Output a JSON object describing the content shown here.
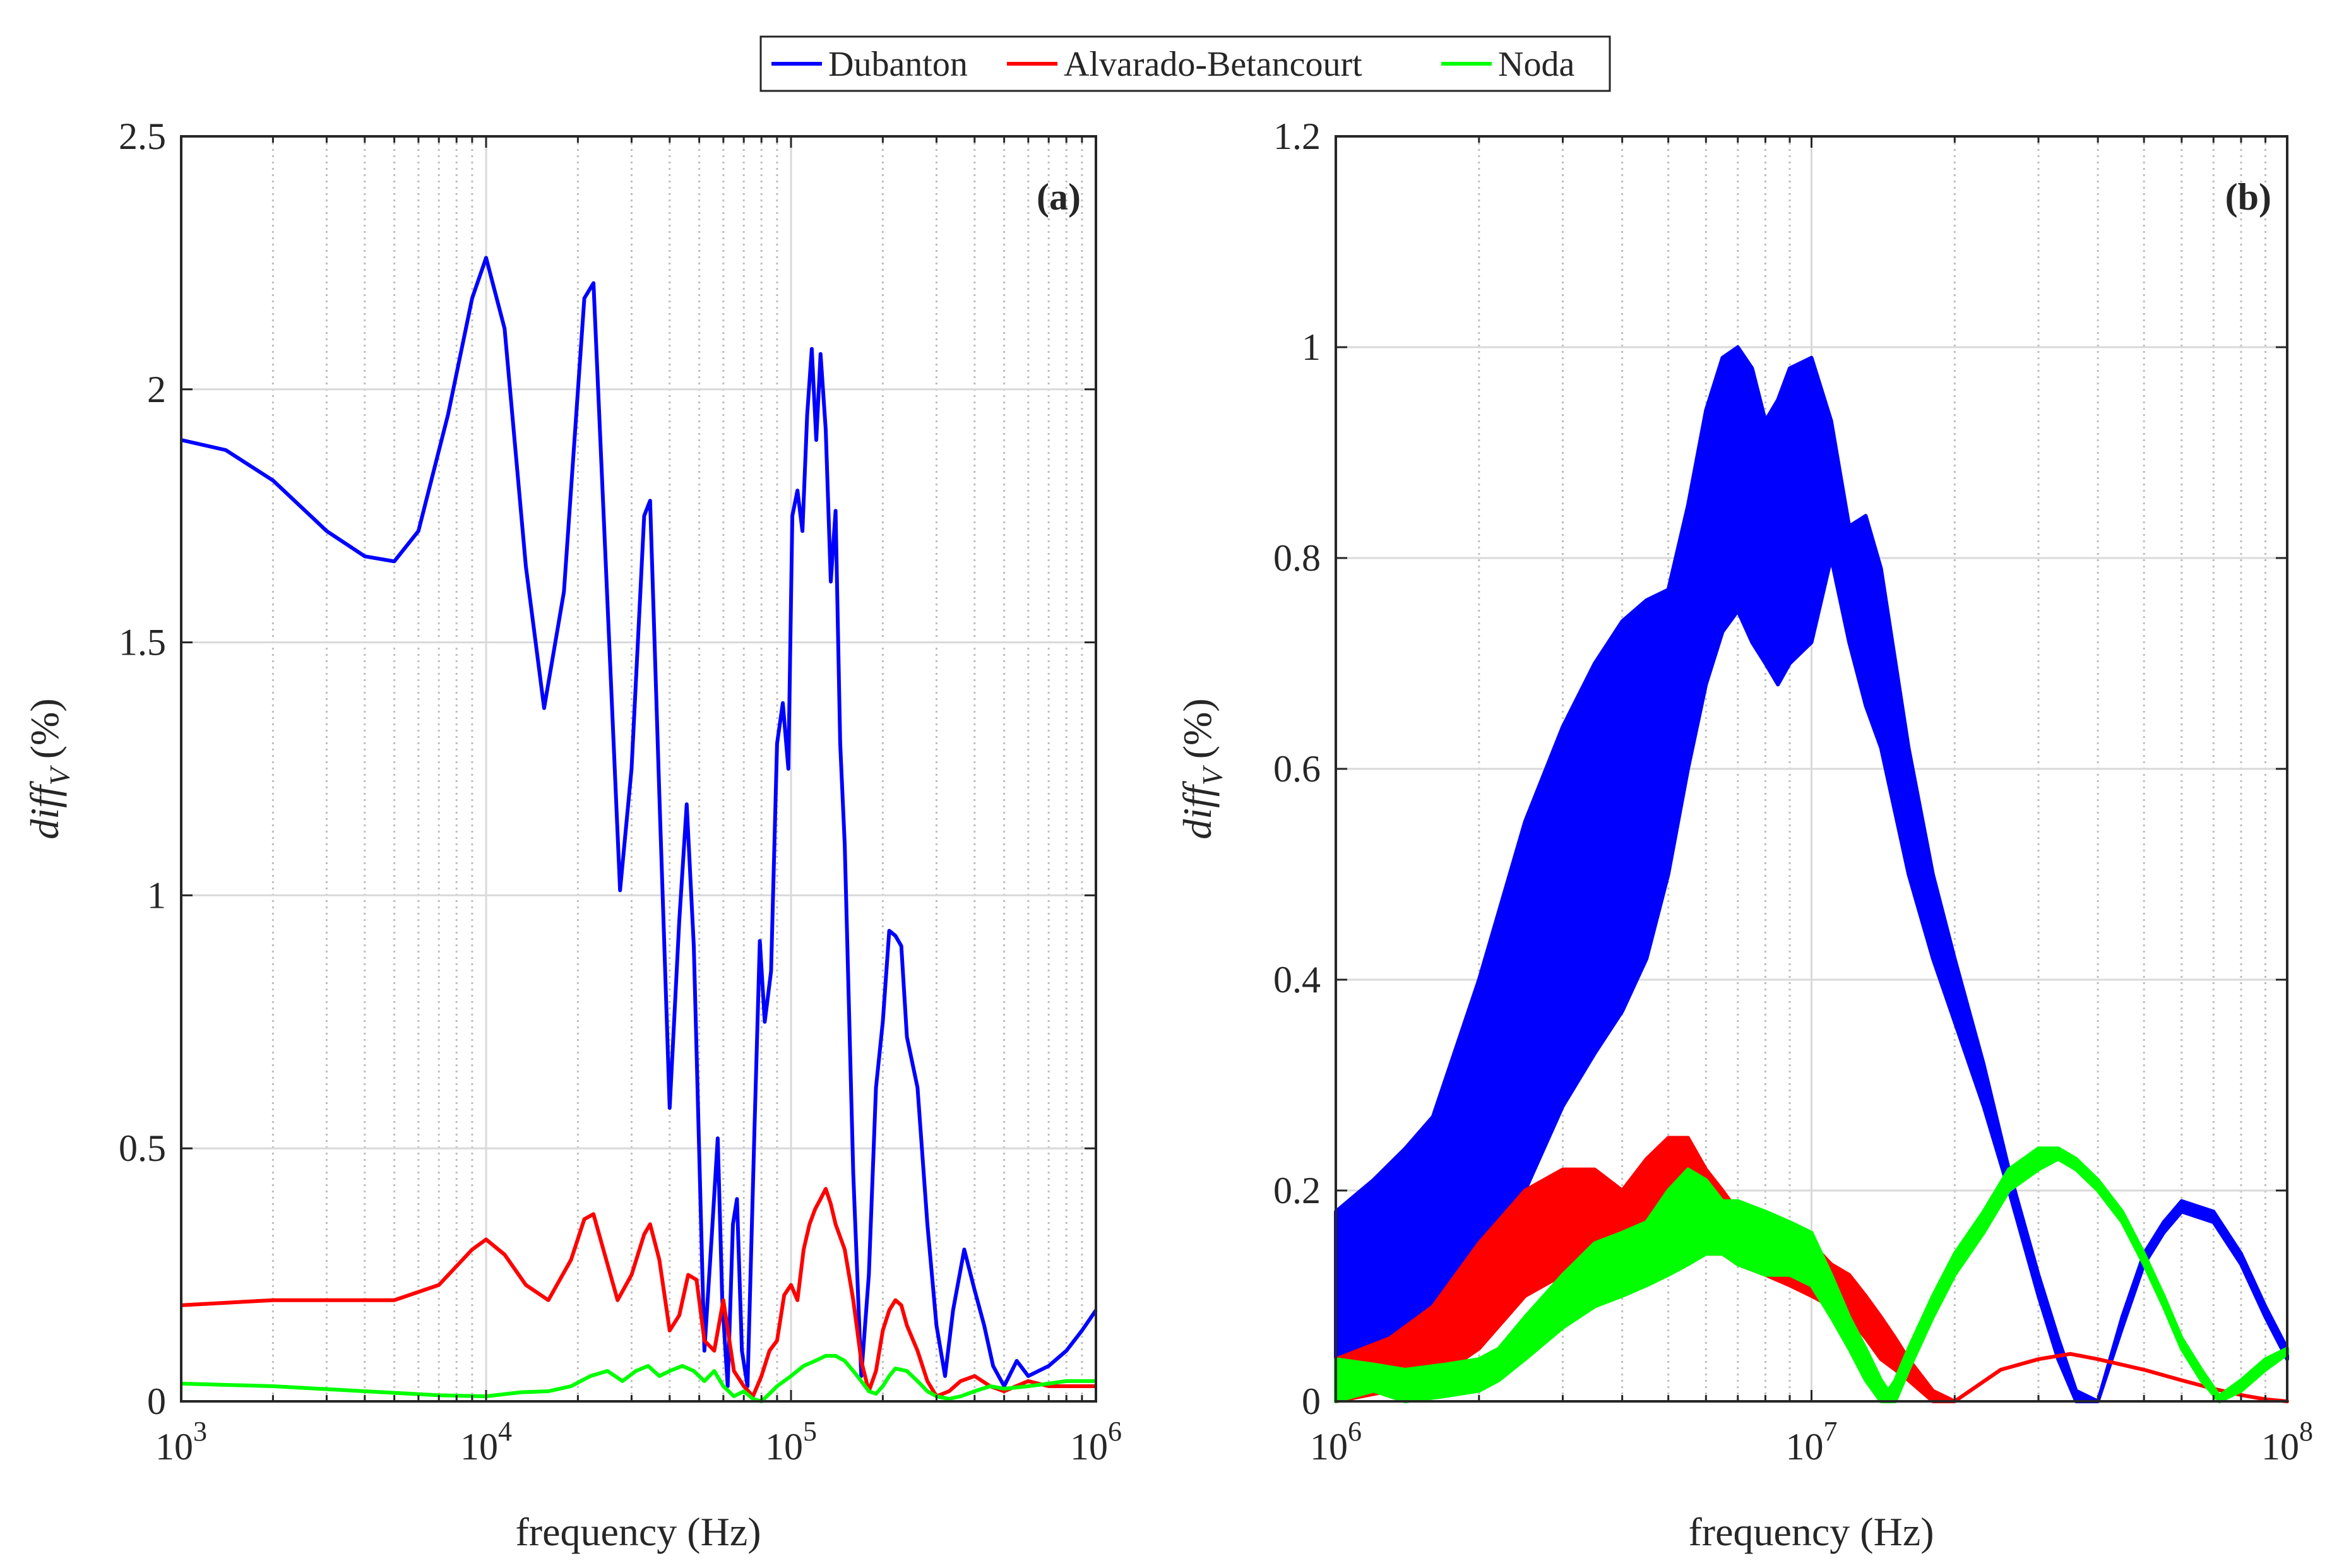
{
  "legend": {
    "entries": [
      {
        "name": "Dubanton",
        "color": "#0000ff"
      },
      {
        "name": "Alvarado-Betancourt",
        "color": "#ff0000"
      },
      {
        "name": "Noda",
        "color": "#00ff00"
      }
    ]
  },
  "chart_data": [
    {
      "type": "line",
      "panel_label": "(a)",
      "xscale": "log",
      "xlabel": "frequency (Hz)",
      "ylabel_main": "diff",
      "ylabel_sub": "V",
      "ylabel_unit": "(%)",
      "xlim": [
        1000,
        1000000
      ],
      "ylim": [
        0,
        2.5
      ],
      "grid": true,
      "xticks": [
        {
          "value": 1000,
          "base": "10",
          "exp": "3"
        },
        {
          "value": 10000,
          "base": "10",
          "exp": "4"
        },
        {
          "value": 100000,
          "base": "10",
          "exp": "5"
        },
        {
          "value": 1000000,
          "base": "10",
          "exp": "6"
        }
      ],
      "yticks": [
        {
          "value": 0,
          "label": "0"
        },
        {
          "value": 0.5,
          "label": "0.5"
        },
        {
          "value": 1,
          "label": "1"
        },
        {
          "value": 1.5,
          "label": "1.5"
        },
        {
          "value": 2,
          "label": "2"
        },
        {
          "value": 2.5,
          "label": "2.5"
        }
      ],
      "series": [
        {
          "name": "Dubanton",
          "color": "#0000ff",
          "x": [
            1000,
            1400,
            2000,
            3000,
            4000,
            5000,
            6000,
            7500,
            9000,
            10000,
            11500,
            13500,
            15500,
            18000,
            21000,
            22500,
            24500,
            27500,
            30000,
            33000,
            34500,
            37000,
            40000,
            43000,
            45500,
            48000,
            52000,
            55000,
            57500,
            59500,
            62000,
            64500,
            66500,
            69000,
            72000,
            76000,
            79000,
            82000,
            86000,
            90000,
            94000,
            98000,
            101000,
            105000,
            109000,
            113000,
            117000,
            121000,
            125000,
            130000,
            135000,
            140000,
            145000,
            150000,
            160000,
            170000,
            180000,
            190000,
            200000,
            210000,
            220000,
            230000,
            240000,
            260000,
            280000,
            300000,
            320000,
            340000,
            370000,
            400000,
            430000,
            460000,
            500000,
            550000,
            600000,
            700000,
            800000,
            900000,
            1000000
          ],
          "y": [
            1.9,
            1.88,
            1.82,
            1.72,
            1.67,
            1.66,
            1.72,
            1.95,
            2.18,
            2.26,
            2.12,
            1.65,
            1.37,
            1.6,
            2.18,
            2.21,
            1.7,
            1.01,
            1.25,
            1.75,
            1.78,
            1.2,
            0.58,
            0.95,
            1.18,
            0.9,
            0.1,
            0.33,
            0.52,
            0.2,
            0.03,
            0.35,
            0.4,
            0.1,
            0.03,
            0.55,
            0.91,
            0.75,
            0.85,
            1.3,
            1.38,
            1.25,
            1.75,
            1.8,
            1.72,
            1.95,
            2.08,
            1.9,
            2.07,
            1.92,
            1.62,
            1.76,
            1.3,
            1.1,
            0.45,
            0.05,
            0.25,
            0.62,
            0.75,
            0.93,
            0.92,
            0.9,
            0.72,
            0.62,
            0.35,
            0.15,
            0.05,
            0.18,
            0.3,
            0.22,
            0.15,
            0.07,
            0.03,
            0.08,
            0.05,
            0.07,
            0.1,
            0.14,
            0.18
          ]
        },
        {
          "name": "Alvarado-Betancourt",
          "color": "#ff0000",
          "x": [
            1000,
            2000,
            5000,
            7000,
            9000,
            10000,
            11500,
            13500,
            16000,
            19000,
            21000,
            22500,
            24500,
            27000,
            30000,
            33000,
            34500,
            37000,
            40000,
            43000,
            46000,
            49000,
            52000,
            56000,
            60000,
            65000,
            70000,
            75000,
            80000,
            85000,
            90000,
            95000,
            100000,
            105000,
            110000,
            115000,
            120000,
            125000,
            130000,
            135000,
            140000,
            150000,
            160000,
            170000,
            180000,
            190000,
            200000,
            210000,
            220000,
            230000,
            240000,
            260000,
            280000,
            300000,
            330000,
            360000,
            400000,
            450000,
            500000,
            600000,
            700000,
            800000,
            1000000
          ],
          "y": [
            0.19,
            0.2,
            0.2,
            0.23,
            0.3,
            0.32,
            0.29,
            0.23,
            0.2,
            0.28,
            0.36,
            0.37,
            0.29,
            0.2,
            0.25,
            0.33,
            0.35,
            0.28,
            0.14,
            0.17,
            0.25,
            0.24,
            0.12,
            0.1,
            0.2,
            0.06,
            0.03,
            0.01,
            0.05,
            0.1,
            0.12,
            0.21,
            0.23,
            0.2,
            0.3,
            0.35,
            0.38,
            0.4,
            0.42,
            0.39,
            0.35,
            0.3,
            0.2,
            0.08,
            0.02,
            0.06,
            0.14,
            0.18,
            0.2,
            0.19,
            0.15,
            0.1,
            0.04,
            0.01,
            0.02,
            0.04,
            0.05,
            0.03,
            0.02,
            0.04,
            0.03,
            0.03,
            0.03
          ]
        },
        {
          "name": "Noda",
          "color": "#00ff00",
          "x": [
            1000,
            2000,
            4000,
            7000,
            10000,
            13000,
            16000,
            19000,
            22000,
            25000,
            28000,
            31000,
            34000,
            37000,
            40000,
            44000,
            48000,
            52000,
            56000,
            60000,
            65000,
            70000,
            75000,
            80000,
            85000,
            90000,
            100000,
            110000,
            120000,
            130000,
            140000,
            150000,
            160000,
            170000,
            180000,
            190000,
            200000,
            210000,
            220000,
            240000,
            260000,
            280000,
            300000,
            330000,
            360000,
            400000,
            450000,
            500000,
            600000,
            700000,
            800000,
            1000000
          ],
          "y": [
            0.035,
            0.03,
            0.02,
            0.012,
            0.01,
            0.018,
            0.02,
            0.03,
            0.05,
            0.06,
            0.04,
            0.06,
            0.07,
            0.05,
            0.06,
            0.07,
            0.06,
            0.04,
            0.06,
            0.03,
            0.01,
            0.02,
            0.005,
            0.0,
            0.015,
            0.03,
            0.05,
            0.07,
            0.08,
            0.09,
            0.09,
            0.08,
            0.06,
            0.04,
            0.02,
            0.015,
            0.03,
            0.05,
            0.065,
            0.06,
            0.04,
            0.02,
            0.01,
            0.005,
            0.01,
            0.02,
            0.03,
            0.025,
            0.03,
            0.035,
            0.04,
            0.04
          ]
        }
      ]
    },
    {
      "type": "line",
      "panel_label": "(b)",
      "xscale": "log",
      "xlabel": "frequency (Hz)",
      "ylabel_main": "diff",
      "ylabel_sub": "V",
      "ylabel_unit": "(%)",
      "xlim": [
        1000000,
        100000000
      ],
      "ylim": [
        0,
        1.2
      ],
      "grid": true,
      "xticks": [
        {
          "value": 1000000,
          "base": "10",
          "exp": "6"
        },
        {
          "value": 10000000,
          "base": "10",
          "exp": "7"
        },
        {
          "value": 100000000,
          "base": "10",
          "exp": "8"
        }
      ],
      "yticks": [
        {
          "value": 0,
          "label": "0"
        },
        {
          "value": 0.2,
          "label": "0.2"
        },
        {
          "value": 0.4,
          "label": "0.4"
        },
        {
          "value": 0.6,
          "label": "0.6"
        },
        {
          "value": 0.8,
          "label": "0.8"
        },
        {
          "value": 1,
          "label": "1"
        },
        {
          "value": 1.2,
          "label": "1.2"
        }
      ],
      "series": [
        {
          "name": "Dubanton",
          "color": "#0000ff",
          "x": [
            1000000,
            1200000,
            1400000,
            1600000,
            2000000,
            2500000,
            3000000,
            3500000,
            4000000,
            4500000,
            5000000,
            5500000,
            6000000,
            6500000,
            7000000,
            7500000,
            8000000,
            8500000,
            9000000,
            10000000,
            11000000,
            12000000,
            13000000,
            14000000,
            16000000,
            18000000,
            20000000,
            23000000,
            26000000,
            30000000,
            33000000,
            36000000,
            40000000,
            45000000,
            50000000,
            55000000,
            60000000,
            70000000,
            80000000,
            90000000,
            100000000
          ],
          "y_upper": [
            0.18,
            0.21,
            0.24,
            0.27,
            0.4,
            0.55,
            0.64,
            0.7,
            0.74,
            0.76,
            0.77,
            0.85,
            0.94,
            0.99,
            1.0,
            0.98,
            0.93,
            0.95,
            0.98,
            0.99,
            0.93,
            0.83,
            0.84,
            0.79,
            0.62,
            0.5,
            0.42,
            0.32,
            0.22,
            0.12,
            0.06,
            0.01,
            0.0,
            0.08,
            0.14,
            0.17,
            0.19,
            0.18,
            0.14,
            0.09,
            0.05
          ],
          "y_lower": [
            0.0,
            0.02,
            0.04,
            0.06,
            0.12,
            0.2,
            0.28,
            0.33,
            0.37,
            0.42,
            0.5,
            0.6,
            0.68,
            0.73,
            0.75,
            0.72,
            0.7,
            0.68,
            0.7,
            0.72,
            0.8,
            0.72,
            0.66,
            0.62,
            0.5,
            0.42,
            0.36,
            0.28,
            0.2,
            0.1,
            0.04,
            0.0,
            0.0,
            0.07,
            0.13,
            0.16,
            0.18,
            0.17,
            0.13,
            0.08,
            0.04
          ]
        },
        {
          "name": "Alvarado-Betancourt",
          "color": "#ff0000",
          "x": [
            1000000,
            1300000,
            1600000,
            2000000,
            2500000,
            3000000,
            3500000,
            4000000,
            4500000,
            5000000,
            5500000,
            6000000,
            6500000,
            7000000,
            8000000,
            9000000,
            10000000,
            11000000,
            12000000,
            13000000,
            14000000,
            15000000,
            16000000,
            18000000,
            20000000,
            25000000,
            30000000,
            35000000,
            40000000,
            50000000,
            60000000,
            70000000,
            80000000,
            90000000,
            100000000
          ],
          "y_upper": [
            0.04,
            0.06,
            0.09,
            0.15,
            0.2,
            0.22,
            0.22,
            0.2,
            0.23,
            0.25,
            0.25,
            0.22,
            0.2,
            0.18,
            0.17,
            0.16,
            0.15,
            0.13,
            0.12,
            0.1,
            0.08,
            0.06,
            0.04,
            0.01,
            0.0,
            0.03,
            0.04,
            0.045,
            0.04,
            0.03,
            0.02,
            0.012,
            0.006,
            0.002,
            0.0
          ],
          "y_lower": [
            0.0,
            0.01,
            0.02,
            0.05,
            0.1,
            0.12,
            0.13,
            0.13,
            0.14,
            0.15,
            0.15,
            0.14,
            0.14,
            0.13,
            0.12,
            0.11,
            0.1,
            0.09,
            0.08,
            0.06,
            0.04,
            0.03,
            0.02,
            0.0,
            0.0,
            0.03,
            0.04,
            0.045,
            0.04,
            0.03,
            0.02,
            0.012,
            0.006,
            0.002,
            0.0
          ]
        },
        {
          "name": "Noda",
          "color": "#00ff00",
          "x": [
            1000000,
            1200000,
            1400000,
            1700000,
            2000000,
            2200000,
            2500000,
            3000000,
            3500000,
            4000000,
            4500000,
            5000000,
            5500000,
            6000000,
            6500000,
            7000000,
            8000000,
            9000000,
            10000000,
            11000000,
            12000000,
            13000000,
            14000000,
            14500000,
            15000000,
            16000000,
            18000000,
            20000000,
            23000000,
            26000000,
            30000000,
            33000000,
            36000000,
            40000000,
            45000000,
            50000000,
            55000000,
            60000000,
            66000000,
            72000000,
            80000000,
            90000000,
            100000000
          ],
          "y_upper": [
            0.04,
            0.035,
            0.03,
            0.035,
            0.04,
            0.05,
            0.08,
            0.12,
            0.15,
            0.16,
            0.17,
            0.2,
            0.22,
            0.21,
            0.19,
            0.19,
            0.18,
            0.17,
            0.16,
            0.12,
            0.08,
            0.05,
            0.02,
            0.01,
            0.02,
            0.05,
            0.1,
            0.14,
            0.18,
            0.22,
            0.24,
            0.24,
            0.23,
            0.21,
            0.18,
            0.14,
            0.1,
            0.06,
            0.03,
            0.005,
            0.02,
            0.04,
            0.05
          ],
          "y_lower": [
            0.0,
            0.01,
            0.0,
            0.005,
            0.01,
            0.02,
            0.04,
            0.07,
            0.09,
            0.1,
            0.11,
            0.12,
            0.13,
            0.14,
            0.14,
            0.13,
            0.12,
            0.12,
            0.11,
            0.08,
            0.05,
            0.02,
            0.0,
            0.0,
            0.0,
            0.03,
            0.08,
            0.12,
            0.16,
            0.2,
            0.22,
            0.23,
            0.22,
            0.2,
            0.17,
            0.13,
            0.09,
            0.05,
            0.02,
            0.0,
            0.01,
            0.03,
            0.045
          ]
        }
      ]
    }
  ]
}
